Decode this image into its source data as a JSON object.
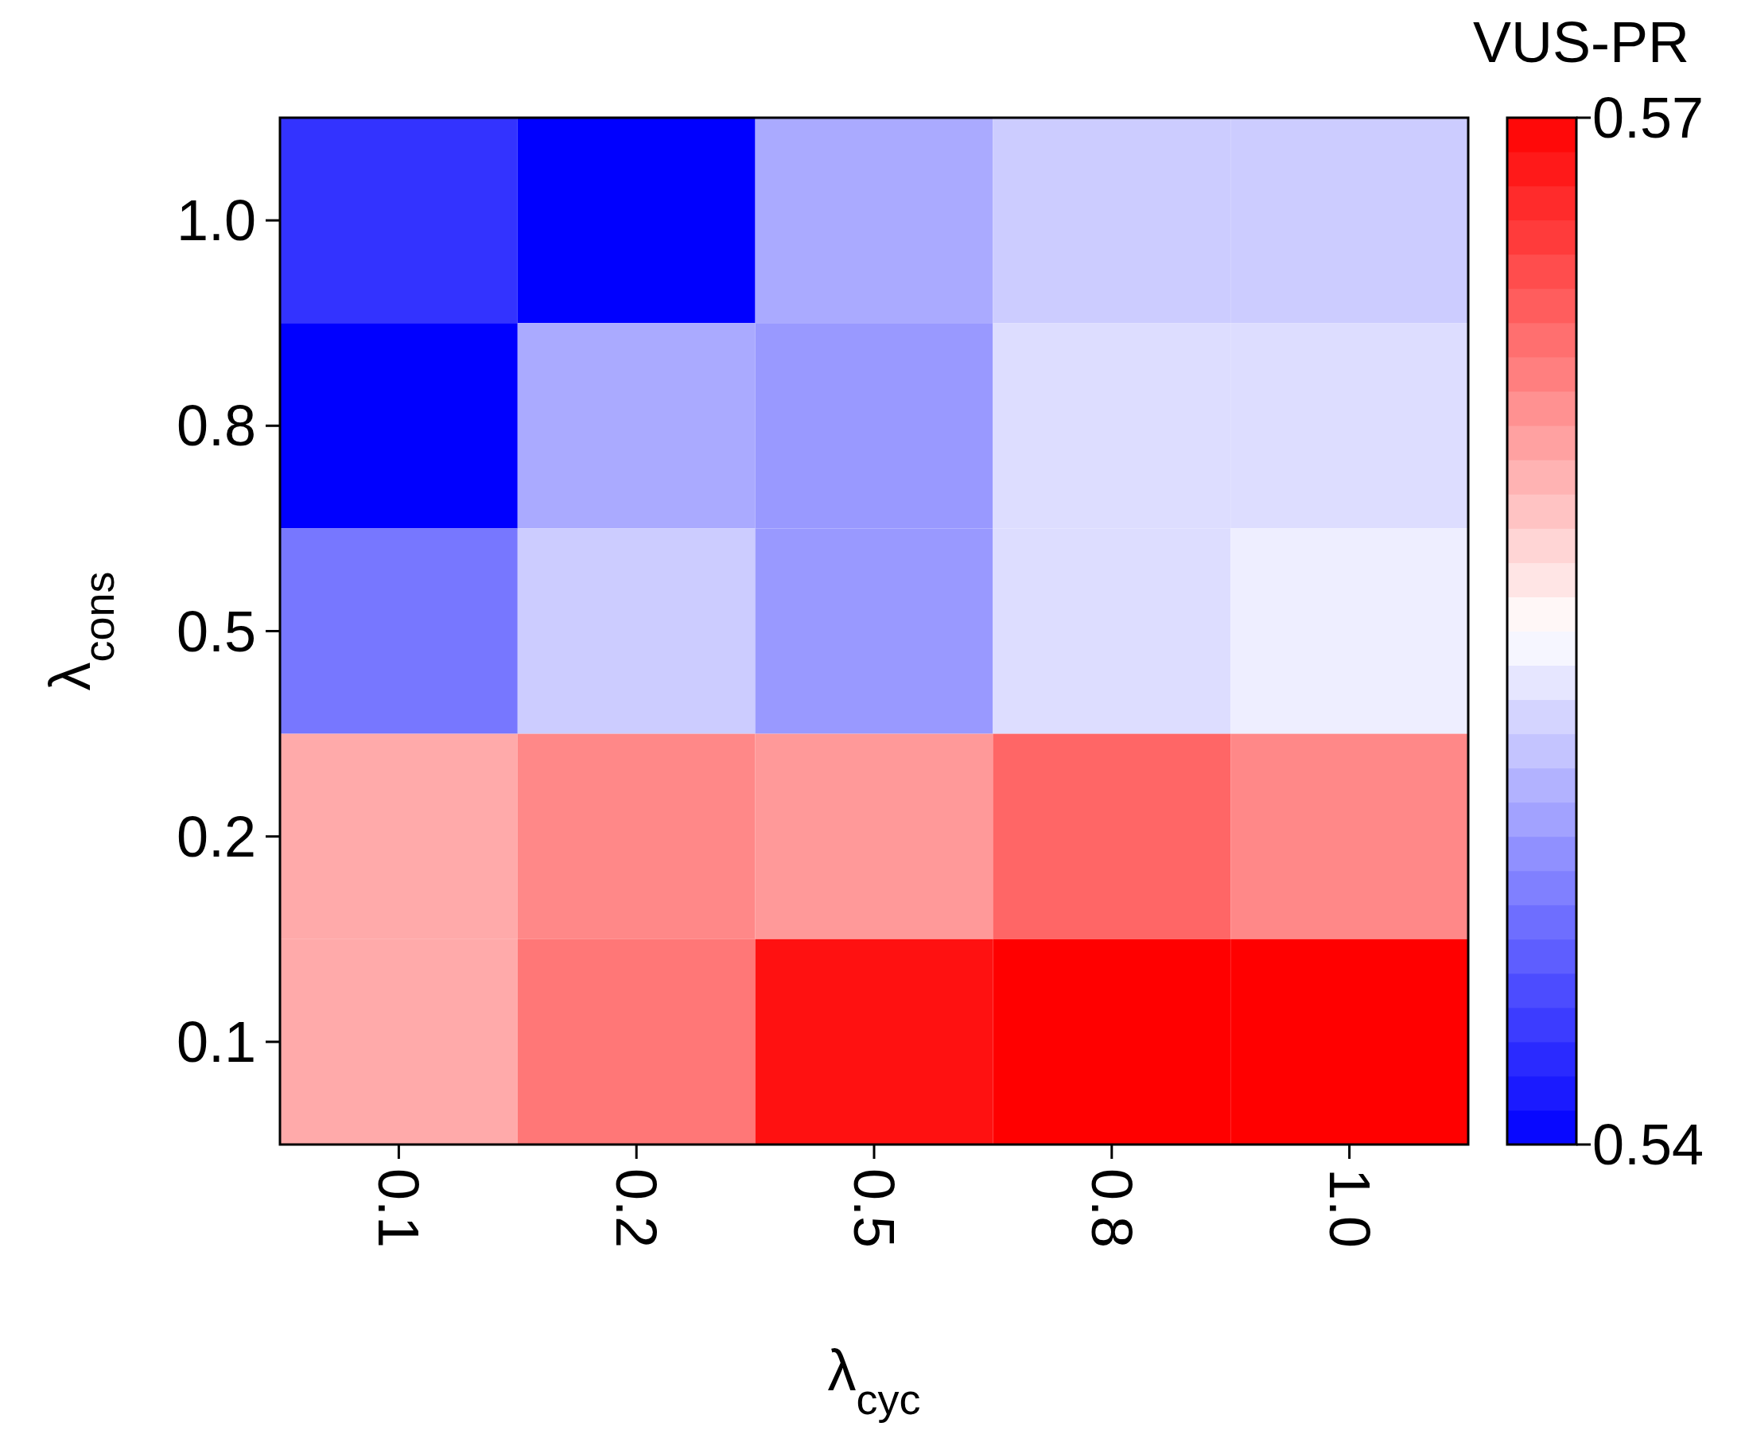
{
  "chart_data": {
    "type": "heatmap",
    "xlabel": "λ$_{cyc}$",
    "ylabel": "λ$_{cons}$",
    "clabel": "VUS-PR",
    "categories": [
      "0.1",
      "0.2",
      "0.5",
      "0.8",
      "1.0"
    ],
    "y_categories": [
      "1.0",
      "0.8",
      "0.5",
      "0.2",
      "0.1"
    ],
    "cells": [
      [
        0.543,
        0.54,
        0.55,
        0.552,
        0.552
      ],
      [
        0.54,
        0.55,
        0.549,
        0.553,
        0.553
      ],
      [
        0.547,
        0.552,
        0.549,
        0.553,
        0.554
      ],
      [
        0.56,
        0.562,
        0.561,
        0.564,
        0.562
      ],
      [
        0.56,
        0.563,
        0.569,
        0.57,
        0.57
      ]
    ],
    "clim": [
      0.54,
      0.57
    ],
    "cticks": [
      0.54,
      0.57
    ]
  }
}
